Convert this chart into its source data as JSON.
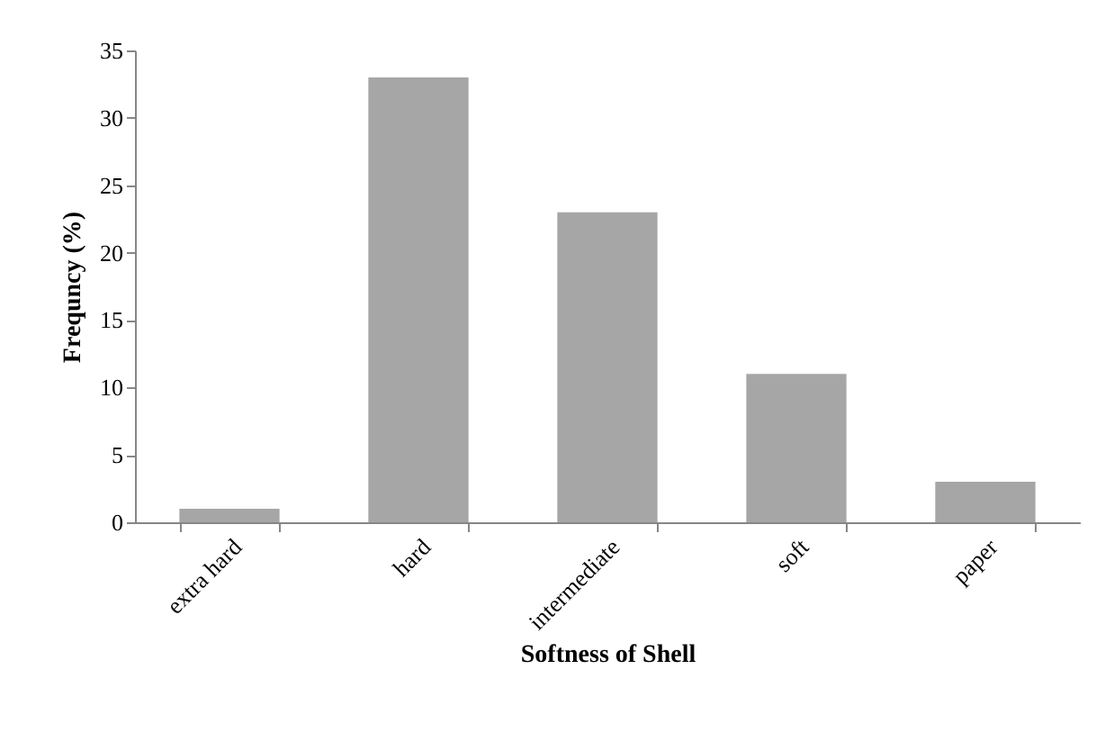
{
  "chart_data": {
    "type": "bar",
    "xlabel": "Softness of Shell",
    "ylabel": "Frequncy (%)",
    "categories": [
      "extra hard",
      "hard",
      "intermediate",
      "soft",
      "paper"
    ],
    "values": [
      1,
      33,
      23,
      11,
      3
    ],
    "color": "#a6a6a6",
    "ylim": [
      0,
      35
    ],
    "yticks": [
      0,
      5,
      10,
      15,
      20,
      25,
      30,
      35
    ],
    "grid": false
  }
}
